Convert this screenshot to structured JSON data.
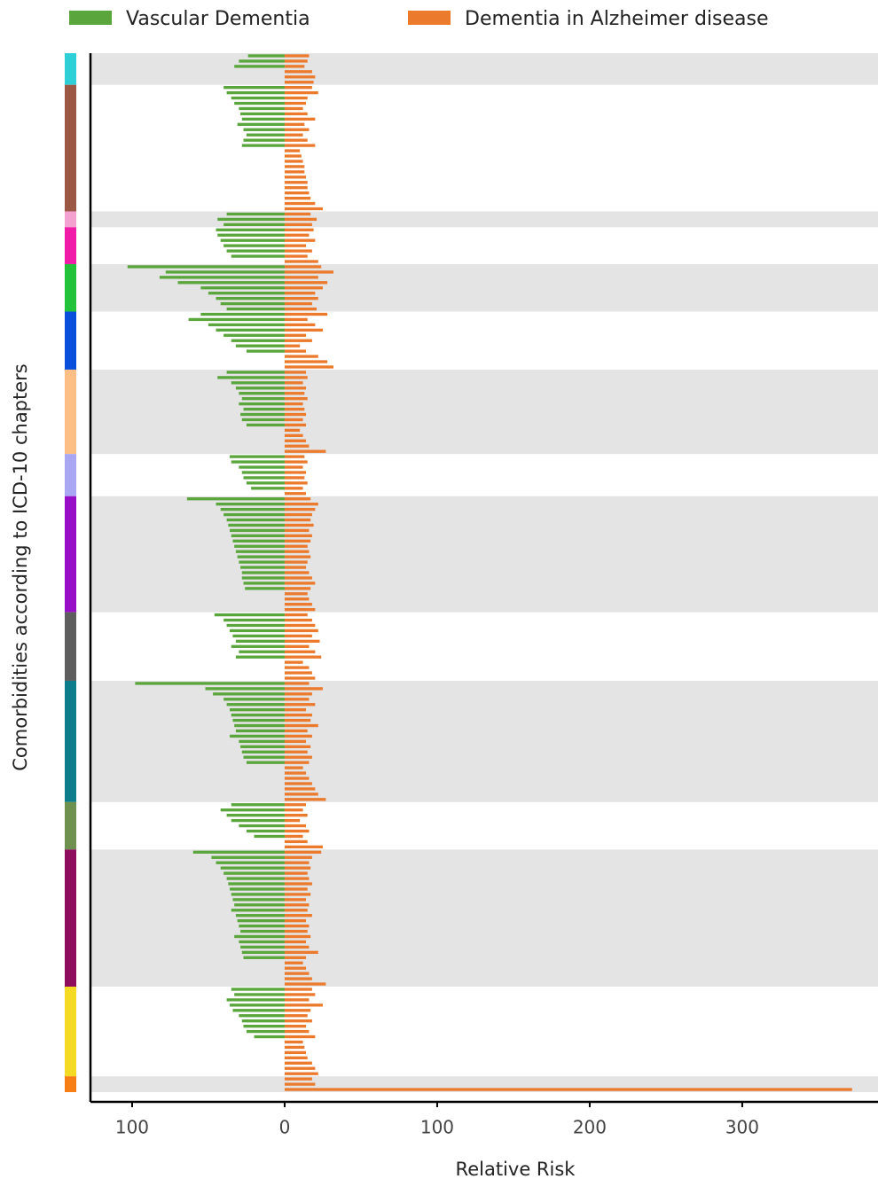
{
  "chart_data": {
    "type": "diverging-bar",
    "xlabel": "Relative Risk",
    "ylabel": "Comorbidities according to ICD-10 chapters",
    "xlim": [
      -127.3,
      389
    ],
    "xticks": [
      {
        "value": -100,
        "label": "100"
      },
      0,
      100,
      200,
      300
    ],
    "groups": [
      {
        "color": "#2ecfd6",
        "size": 6,
        "shaded": true
      },
      {
        "color": "#9c5745",
        "size": 24,
        "shaded": false
      },
      {
        "color": "#f4a0d0",
        "size": 3,
        "shaded": true
      },
      {
        "color": "#f01ca8",
        "size": 7,
        "shaded": false
      },
      {
        "color": "#22c33a",
        "size": 9,
        "shaded": true
      },
      {
        "color": "#0a4fdc",
        "size": 11,
        "shaded": false
      },
      {
        "color": "#fdbf85",
        "size": 16,
        "shaded": true
      },
      {
        "color": "#a9a7f4",
        "size": 8,
        "shaded": false
      },
      {
        "color": "#9710c8",
        "size": 22,
        "shaded": true
      },
      {
        "color": "#5e5e5e",
        "size": 13,
        "shaded": false
      },
      {
        "color": "#0d7c8b",
        "size": 23,
        "shaded": true
      },
      {
        "color": "#6e9150",
        "size": 9,
        "shaded": false
      },
      {
        "color": "#8e0d5c",
        "size": 26,
        "shaded": true
      },
      {
        "color": "#f4da22",
        "size": 17,
        "shaded": false
      },
      {
        "color": "#f67e14",
        "size": 3,
        "shaded": true
      }
    ],
    "series": [
      {
        "name": "Vascular Dementia",
        "color": "#5aa63c",
        "direction": "left",
        "values": [
          24,
          30,
          33,
          null,
          null,
          null,
          40,
          38,
          35,
          33,
          30,
          29,
          28,
          31,
          27,
          25,
          27,
          28,
          null,
          null,
          null,
          null,
          null,
          null,
          null,
          null,
          null,
          null,
          null,
          null,
          38,
          44,
          40,
          45,
          44,
          42,
          40,
          38,
          35,
          null,
          103,
          78,
          82,
          70,
          55,
          50,
          45,
          42,
          38,
          55,
          63,
          50,
          45,
          40,
          35,
          32,
          25,
          null,
          null,
          null,
          38,
          44,
          35,
          32,
          30,
          28,
          30,
          27,
          29,
          28,
          25,
          null,
          null,
          null,
          null,
          null,
          36,
          35,
          30,
          28,
          27,
          25,
          22,
          null,
          64,
          45,
          42,
          40,
          38,
          37,
          36,
          35,
          34,
          33,
          32,
          31,
          30,
          29,
          28,
          28,
          27,
          26,
          null,
          null,
          null,
          null,
          46,
          40,
          38,
          36,
          34,
          32,
          35,
          30,
          32,
          null,
          null,
          null,
          null,
          98,
          52,
          47,
          40,
          38,
          36,
          35,
          34,
          33,
          32,
          36,
          30,
          29,
          28,
          27,
          25,
          null,
          null,
          null,
          null,
          null,
          null,
          null,
          35,
          42,
          38,
          35,
          30,
          25,
          20,
          null,
          null,
          60,
          48,
          45,
          42,
          40,
          38,
          37,
          36,
          35,
          34,
          33,
          35,
          32,
          31,
          30,
          29,
          33,
          30,
          29,
          28,
          27,
          null,
          null,
          null,
          null,
          null,
          35,
          33,
          38,
          36,
          34,
          30,
          28,
          27,
          25,
          20,
          null,
          null,
          null,
          null,
          null,
          null,
          null,
          null,
          null,
          null
        ]
      },
      {
        "name": "Dementia in Alzheimer disease",
        "color": "#ec7a2c",
        "direction": "right",
        "values": [
          16,
          15,
          13,
          18,
          20,
          19,
          18,
          22,
          15,
          14,
          12,
          15,
          20,
          13,
          16,
          12,
          15,
          20,
          10,
          11,
          12,
          13,
          13,
          14,
          15,
          15,
          16,
          17,
          20,
          25,
          17,
          21,
          18,
          19,
          16,
          20,
          14,
          18,
          15,
          22,
          24,
          32,
          22,
          28,
          25,
          20,
          22,
          18,
          21,
          28,
          15,
          20,
          25,
          14,
          18,
          10,
          14,
          22,
          28,
          32,
          14,
          15,
          12,
          14,
          13,
          15,
          12,
          13,
          14,
          12,
          14,
          10,
          12,
          14,
          16,
          27,
          13,
          15,
          12,
          14,
          13,
          15,
          12,
          14,
          17,
          22,
          20,
          18,
          17,
          19,
          16,
          18,
          17,
          15,
          16,
          17,
          15,
          14,
          16,
          18,
          20,
          17,
          15,
          16,
          18,
          20,
          15,
          18,
          20,
          22,
          18,
          23,
          16,
          20,
          24,
          12,
          16,
          18,
          20,
          16,
          25,
          18,
          16,
          20,
          14,
          18,
          17,
          22,
          15,
          18,
          14,
          17,
          15,
          18,
          16,
          12,
          14,
          16,
          18,
          20,
          22,
          27,
          14,
          12,
          15,
          10,
          14,
          16,
          12,
          15,
          25,
          24,
          18,
          16,
          17,
          15,
          16,
          18,
          15,
          17,
          14,
          16,
          15,
          18,
          14,
          16,
          15,
          17,
          14,
          16,
          22,
          14,
          12,
          14,
          16,
          18,
          27,
          18,
          20,
          16,
          25,
          17,
          15,
          18,
          14,
          16,
          20,
          12,
          13,
          14,
          15,
          18,
          20,
          22,
          18,
          20,
          372
        ]
      }
    ]
  }
}
